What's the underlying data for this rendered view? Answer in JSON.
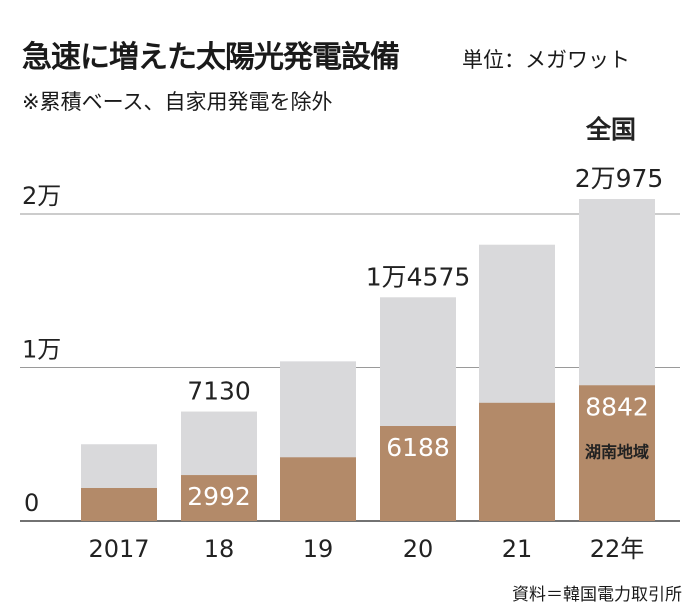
{
  "chart_data": {
    "type": "bar",
    "title": "急速に増えた太陽光発電設備",
    "unit": "単位：メガワット",
    "note": "※累積ベース、自家用発電を除外",
    "source": "資料＝韓国電力取引所",
    "categories": [
      "2017",
      "18",
      "19",
      "20",
      "21",
      "22年"
    ],
    "ylim": [
      0,
      22000
    ],
    "y_ticks": [
      {
        "value": 0,
        "label": "0"
      },
      {
        "value": 10000,
        "label": "1万"
      },
      {
        "value": 20000,
        "label": "2万"
      }
    ],
    "grid": "horizontal",
    "series": [
      {
        "name": "全国",
        "color": "#d9d9db",
        "values": [
          5000,
          7130,
          10400,
          14575,
          18000,
          20975
        ],
        "labels": [
          "",
          "7130",
          "",
          "1万4575",
          "",
          "2万975"
        ]
      },
      {
        "name": "湖南地域",
        "color": "#b38a69",
        "values": [
          2150,
          2992,
          4150,
          6188,
          7700,
          8842
        ],
        "labels": [
          "",
          "2992",
          "",
          "6188",
          "",
          "8842"
        ]
      }
    ]
  }
}
